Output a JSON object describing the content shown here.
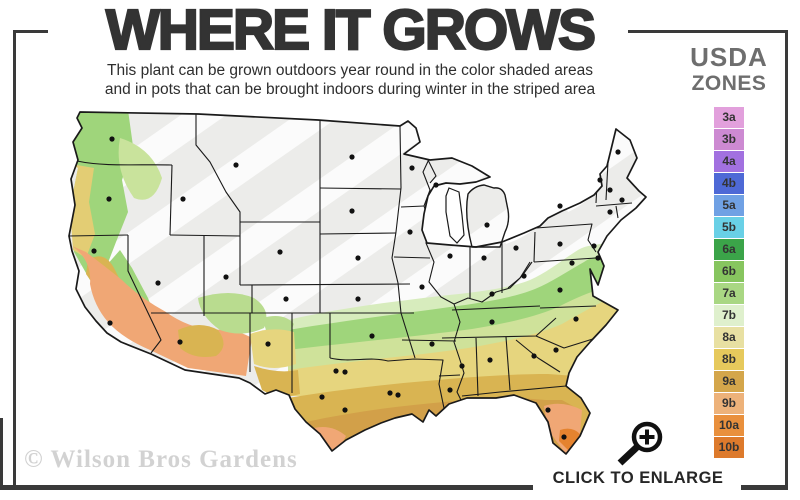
{
  "header": {
    "title": "WHERE IT GROWS",
    "subtitle_line1": "This plant can be grown outdoors year round in the color shaded areas",
    "subtitle_line2": "and in pots that can be brought indoors during winter in the striped area"
  },
  "legend": {
    "title_line1": "USDA",
    "title_line2": "ZONES",
    "zones": [
      {
        "label": "3a",
        "color": "#e2a0dc"
      },
      {
        "label": "3b",
        "color": "#cd8ad2"
      },
      {
        "label": "4a",
        "color": "#a271e0"
      },
      {
        "label": "4b",
        "color": "#4e69d6"
      },
      {
        "label": "5a",
        "color": "#70a1e4"
      },
      {
        "label": "5b",
        "color": "#69d0e6"
      },
      {
        "label": "6a",
        "color": "#3ba449"
      },
      {
        "label": "6b",
        "color": "#87c55f"
      },
      {
        "label": "7a",
        "color": "#a9d783"
      },
      {
        "label": "7b",
        "color": "#dff0cd"
      },
      {
        "label": "8a",
        "color": "#e8e0a2"
      },
      {
        "label": "8b",
        "color": "#e6c95c"
      },
      {
        "label": "9a",
        "color": "#d4a64b"
      },
      {
        "label": "9b",
        "color": "#edb27a"
      },
      {
        "label": "10a",
        "color": "#e9903d"
      },
      {
        "label": "10b",
        "color": "#dd7a2c"
      }
    ]
  },
  "map": {
    "palette": {
      "striped_fill": "#ececea",
      "stripe_color": "#fbfbfb",
      "border": "#1a1a1a",
      "pale_green": "#d7ecbd",
      "green": "#9fd57b",
      "yellow_green": "#cfe29a",
      "yellow": "#e6d57e",
      "gold": "#d9b452",
      "mustard": "#d2a049",
      "peach": "#f0a775",
      "orange": "#e5832f",
      "city_dot": "#111111"
    }
  },
  "footer": {
    "watermark": "© Wilson Bros Gardens",
    "enlarge_label": "CLICK TO ENLARGE"
  },
  "ui_colors": {
    "frame": "#3a3a3a",
    "title": "#333333",
    "subtitle": "#2e2e2e",
    "legendTitle": "#6e6e6e",
    "watermark": "#d2d2d2",
    "enlarge": "#262626"
  }
}
